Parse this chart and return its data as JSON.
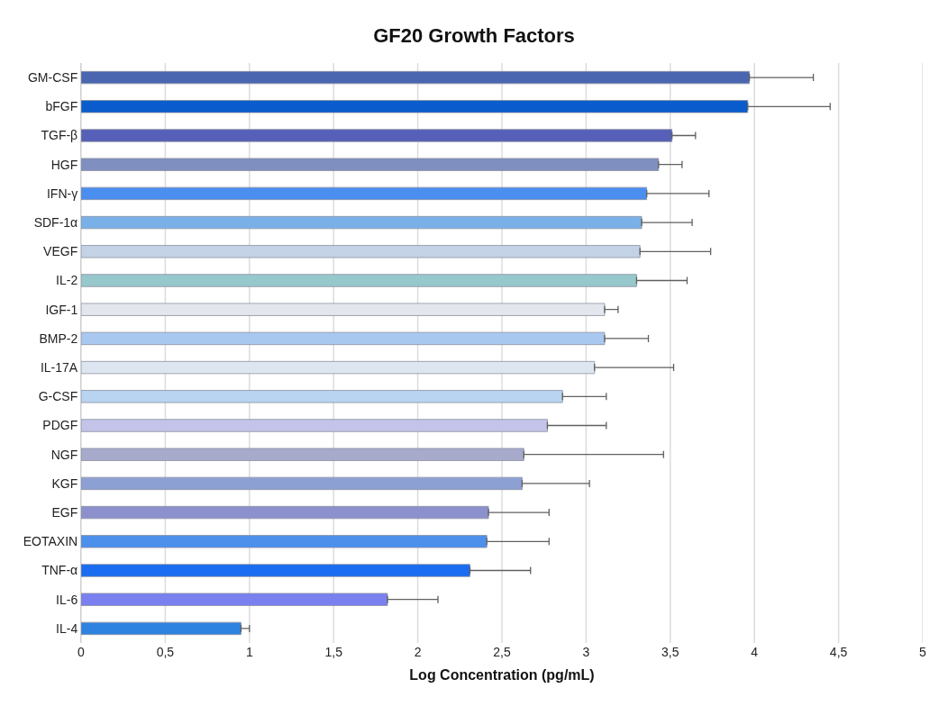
{
  "chart_data": {
    "type": "bar",
    "orientation": "horizontal",
    "title": "GF20 Growth Factors",
    "xlabel": "Log Concentration (pg/mL)",
    "categories": [
      "GM-CSF",
      "bFGF",
      "TGF-β",
      "HGF",
      "IFN-γ",
      "SDF-1α",
      "VEGF",
      "IL-2",
      "IGF-1",
      "BMP-2",
      "IL-17A",
      "G-CSF",
      "PDGF",
      "NGF",
      "KGF",
      "EGF",
      "EOTAXIN",
      "TNF-α",
      "IL-6",
      "IL-4"
    ],
    "values": [
      3.97,
      3.96,
      3.51,
      3.43,
      3.36,
      3.33,
      3.32,
      3.3,
      3.11,
      3.11,
      3.05,
      2.86,
      2.77,
      2.63,
      2.62,
      2.42,
      2.41,
      2.31,
      1.82,
      0.95
    ],
    "errors": [
      [
        3.97,
        4.35
      ],
      [
        3.96,
        4.45
      ],
      [
        3.51,
        3.65
      ],
      [
        3.43,
        3.57
      ],
      [
        3.36,
        3.73
      ],
      [
        3.33,
        3.63
      ],
      [
        3.32,
        3.74
      ],
      [
        3.3,
        3.6
      ],
      [
        3.11,
        3.19
      ],
      [
        3.11,
        3.37
      ],
      [
        3.05,
        3.52
      ],
      [
        2.86,
        3.12
      ],
      [
        2.77,
        3.12
      ],
      [
        2.63,
        3.46
      ],
      [
        2.62,
        3.02
      ],
      [
        2.42,
        2.78
      ],
      [
        2.41,
        2.78
      ],
      [
        2.31,
        2.67
      ],
      [
        1.82,
        2.12
      ],
      [
        0.95,
        1.0
      ]
    ],
    "colors": [
      "#4a66b0",
      "#0a5ccc",
      "#5760b8",
      "#7f8fc0",
      "#4a8ef0",
      "#79b0e8",
      "#c4d2e6",
      "#96c8cc",
      "#e4e6ee",
      "#a8c8f0",
      "#dde6f0",
      "#b8d4f0",
      "#c4c4ea",
      "#a8aacc",
      "#8ca0d4",
      "#8c90cc",
      "#4c90ec",
      "#1a6cf0",
      "#7a80f0",
      "#2e82e0"
    ],
    "xlim": [
      0,
      5
    ],
    "xticks": [
      0,
      {
        "value": 0.5,
        "label": "0,5"
      },
      1,
      {
        "value": 1.5,
        "label": "1,5"
      },
      2,
      {
        "value": 2.5,
        "label": "2,5"
      },
      3,
      {
        "value": 3.5,
        "label": "3,5"
      },
      4,
      {
        "value": 4.5,
        "label": "4,5"
      },
      5
    ],
    "grid": "x"
  }
}
